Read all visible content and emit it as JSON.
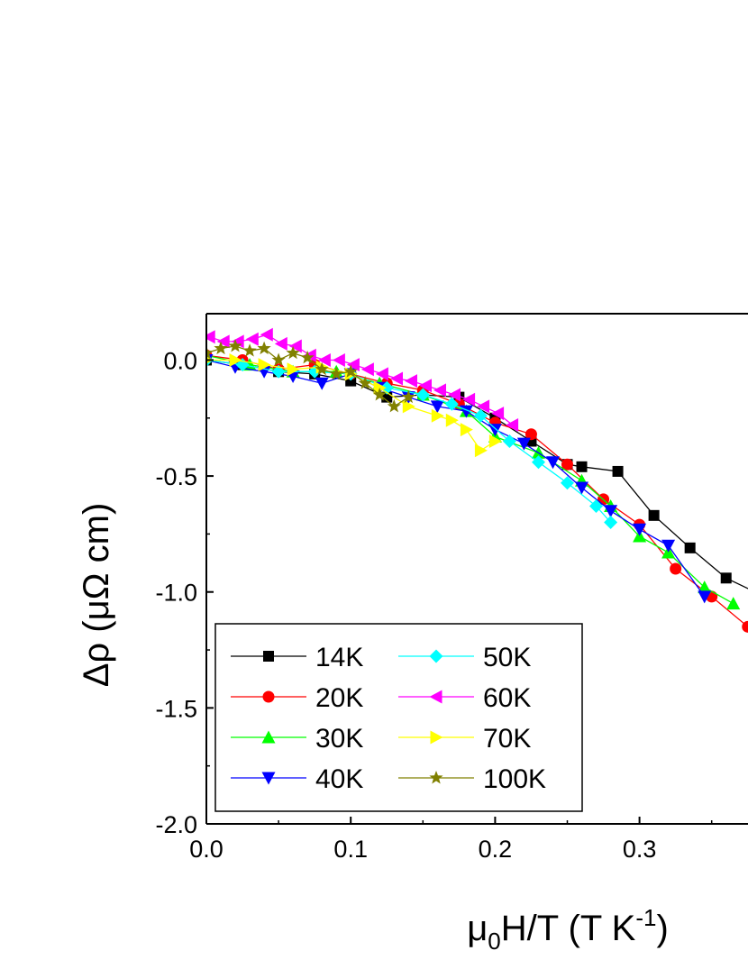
{
  "chart_data": {
    "type": "line",
    "title": "",
    "xlabel": {
      "pre": "μ",
      "sub": "0",
      "mid": "H/T (T K",
      "sup": "-1",
      "post": ")"
    },
    "ylabel": "Δρ (μΩ cm)",
    "xlim": [
      0.0,
      0.38
    ],
    "ylim": [
      -2.0,
      0.2
    ],
    "xticks": [
      0.0,
      0.1,
      0.2,
      0.3
    ],
    "xtick_labels": [
      "0.0",
      "0.1",
      "0.2",
      "0.3"
    ],
    "yticks": [
      0.0,
      -0.5,
      -1.0,
      -1.5,
      -2.0
    ],
    "ytick_labels": [
      "0.0",
      "-0.5",
      "-1.0",
      "-1.5",
      "-2.0"
    ],
    "grid": false,
    "legend_position": "bottom-left",
    "series": [
      {
        "name": "14K",
        "color": "#000000",
        "marker": "square",
        "x": [
          0.0,
          0.025,
          0.05,
          0.075,
          0.1,
          0.125,
          0.15,
          0.175,
          0.2,
          0.225,
          0.25,
          0.26,
          0.285,
          0.31,
          0.335,
          0.36,
          0.38
        ],
        "y": [
          0.0,
          -0.02,
          -0.05,
          -0.06,
          -0.09,
          -0.16,
          -0.15,
          -0.16,
          -0.25,
          -0.35,
          -0.45,
          -0.46,
          -0.48,
          -0.67,
          -0.81,
          -0.94,
          -1.0
        ]
      },
      {
        "name": "20K",
        "color": "#ff0000",
        "marker": "circle",
        "x": [
          0.0,
          0.025,
          0.05,
          0.075,
          0.1,
          0.125,
          0.15,
          0.175,
          0.2,
          0.225,
          0.25,
          0.275,
          0.3,
          0.325,
          0.35,
          0.375
        ],
        "y": [
          0.02,
          0.0,
          -0.04,
          -0.02,
          -0.06,
          -0.1,
          -0.13,
          -0.19,
          -0.27,
          -0.32,
          -0.45,
          -0.6,
          -0.71,
          -0.9,
          -1.02,
          -1.15
        ]
      },
      {
        "name": "30K",
        "color": "#00ff00",
        "marker": "triangle-up",
        "x": [
          0.0,
          0.03,
          0.06,
          0.09,
          0.12,
          0.15,
          0.18,
          0.2,
          0.23,
          0.26,
          0.28,
          0.3,
          0.32,
          0.345,
          0.365
        ],
        "y": [
          0.02,
          -0.02,
          -0.05,
          -0.05,
          -0.1,
          -0.15,
          -0.22,
          -0.33,
          -0.4,
          -0.52,
          -0.63,
          -0.76,
          -0.83,
          -0.98,
          -1.05
        ]
      },
      {
        "name": "40K",
        "color": "#0000ff",
        "marker": "triangle-down",
        "x": [
          0.0,
          0.02,
          0.04,
          0.06,
          0.08,
          0.1,
          0.12,
          0.14,
          0.16,
          0.18,
          0.2,
          0.22,
          0.24,
          0.26,
          0.28,
          0.3,
          0.32,
          0.345
        ],
        "y": [
          0.0,
          -0.03,
          -0.05,
          -0.07,
          -0.1,
          -0.06,
          -0.12,
          -0.16,
          -0.2,
          -0.22,
          -0.3,
          -0.36,
          -0.44,
          -0.55,
          -0.65,
          -0.73,
          -0.8,
          -1.02
        ]
      },
      {
        "name": "50K",
        "color": "#00ffff",
        "marker": "diamond",
        "x": [
          0.0,
          0.025,
          0.05,
          0.075,
          0.1,
          0.125,
          0.15,
          0.17,
          0.19,
          0.21,
          0.23,
          0.25,
          0.27,
          0.28
        ],
        "y": [
          0.0,
          -0.02,
          -0.05,
          -0.05,
          -0.06,
          -0.12,
          -0.15,
          -0.19,
          -0.24,
          -0.35,
          -0.44,
          -0.53,
          -0.63,
          -0.7
        ]
      },
      {
        "name": "60K",
        "color": "#ff00ff",
        "marker": "triangle-left",
        "x": [
          0.002,
          0.012,
          0.022,
          0.032,
          0.042,
          0.052,
          0.062,
          0.072,
          0.082,
          0.092,
          0.102,
          0.112,
          0.122,
          0.132,
          0.142,
          0.152,
          0.162,
          0.172,
          0.182,
          0.192,
          0.202,
          0.212
        ],
        "y": [
          0.1,
          0.08,
          0.08,
          0.09,
          0.11,
          0.07,
          0.06,
          0.02,
          0.0,
          0.0,
          -0.02,
          -0.04,
          -0.06,
          -0.08,
          -0.09,
          -0.11,
          -0.13,
          -0.15,
          -0.17,
          -0.2,
          -0.23,
          -0.28
        ]
      },
      {
        "name": "70K",
        "color": "#ffff00",
        "marker": "triangle-right",
        "x": [
          0.0,
          0.02,
          0.04,
          0.06,
          0.08,
          0.1,
          0.12,
          0.14,
          0.16,
          0.17,
          0.18,
          0.19,
          0.2
        ],
        "y": [
          0.0,
          0.0,
          -0.02,
          -0.04,
          -0.03,
          -0.06,
          -0.12,
          -0.2,
          -0.24,
          -0.26,
          -0.3,
          -0.39,
          -0.35
        ]
      },
      {
        "name": "100K",
        "color": "#808000",
        "marker": "star",
        "x": [
          0.0,
          0.01,
          0.02,
          0.03,
          0.04,
          0.05,
          0.06,
          0.07,
          0.08,
          0.09,
          0.1,
          0.11,
          0.12,
          0.13,
          0.14
        ],
        "y": [
          0.03,
          0.05,
          0.06,
          0.04,
          0.05,
          0.0,
          0.03,
          0.01,
          -0.04,
          -0.06,
          -0.05,
          -0.1,
          -0.15,
          -0.2,
          -0.16
        ]
      }
    ]
  }
}
